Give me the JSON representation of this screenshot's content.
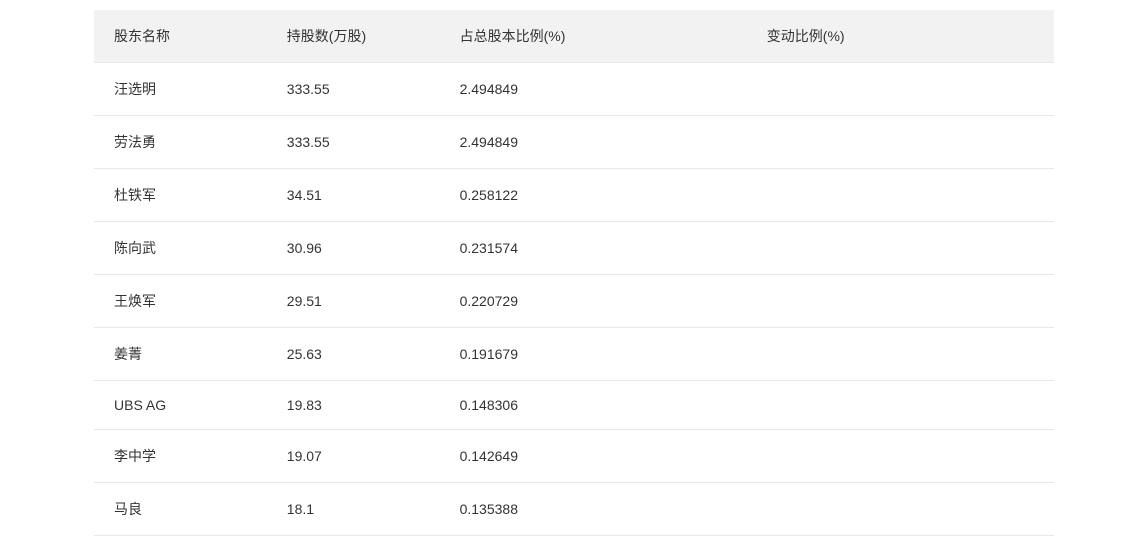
{
  "table": {
    "columns": [
      {
        "label": "股东名称",
        "width": "18%"
      },
      {
        "label": "持股数(万股)",
        "width": "18%"
      },
      {
        "label": "占总股本比例(%)",
        "width": "32%"
      },
      {
        "label": "变动比例(%)",
        "width": "32%"
      }
    ],
    "rows": [
      {
        "name": "汪选明",
        "shares": "333.55",
        "ratio": "2.494849",
        "change": ""
      },
      {
        "name": "劳法勇",
        "shares": "333.55",
        "ratio": "2.494849",
        "change": ""
      },
      {
        "name": "杜铁军",
        "shares": "34.51",
        "ratio": "0.258122",
        "change": ""
      },
      {
        "name": "陈向武",
        "shares": "30.96",
        "ratio": "0.231574",
        "change": ""
      },
      {
        "name": "王焕军",
        "shares": "29.51",
        "ratio": "0.220729",
        "change": ""
      },
      {
        "name": "姜菁",
        "shares": "25.63",
        "ratio": "0.191679",
        "change": ""
      },
      {
        "name": "UBS AG",
        "shares": "19.83",
        "ratio": "0.148306",
        "change": ""
      },
      {
        "name": "李中学",
        "shares": "19.07",
        "ratio": "0.142649",
        "change": ""
      },
      {
        "name": "马良",
        "shares": "18.1",
        "ratio": "0.135388",
        "change": ""
      }
    ],
    "header_bg": "#f2f2f2",
    "row_bg": "#ffffff",
    "border_color": "#e8e8e8",
    "text_color": "#333333",
    "font_size": 14
  }
}
